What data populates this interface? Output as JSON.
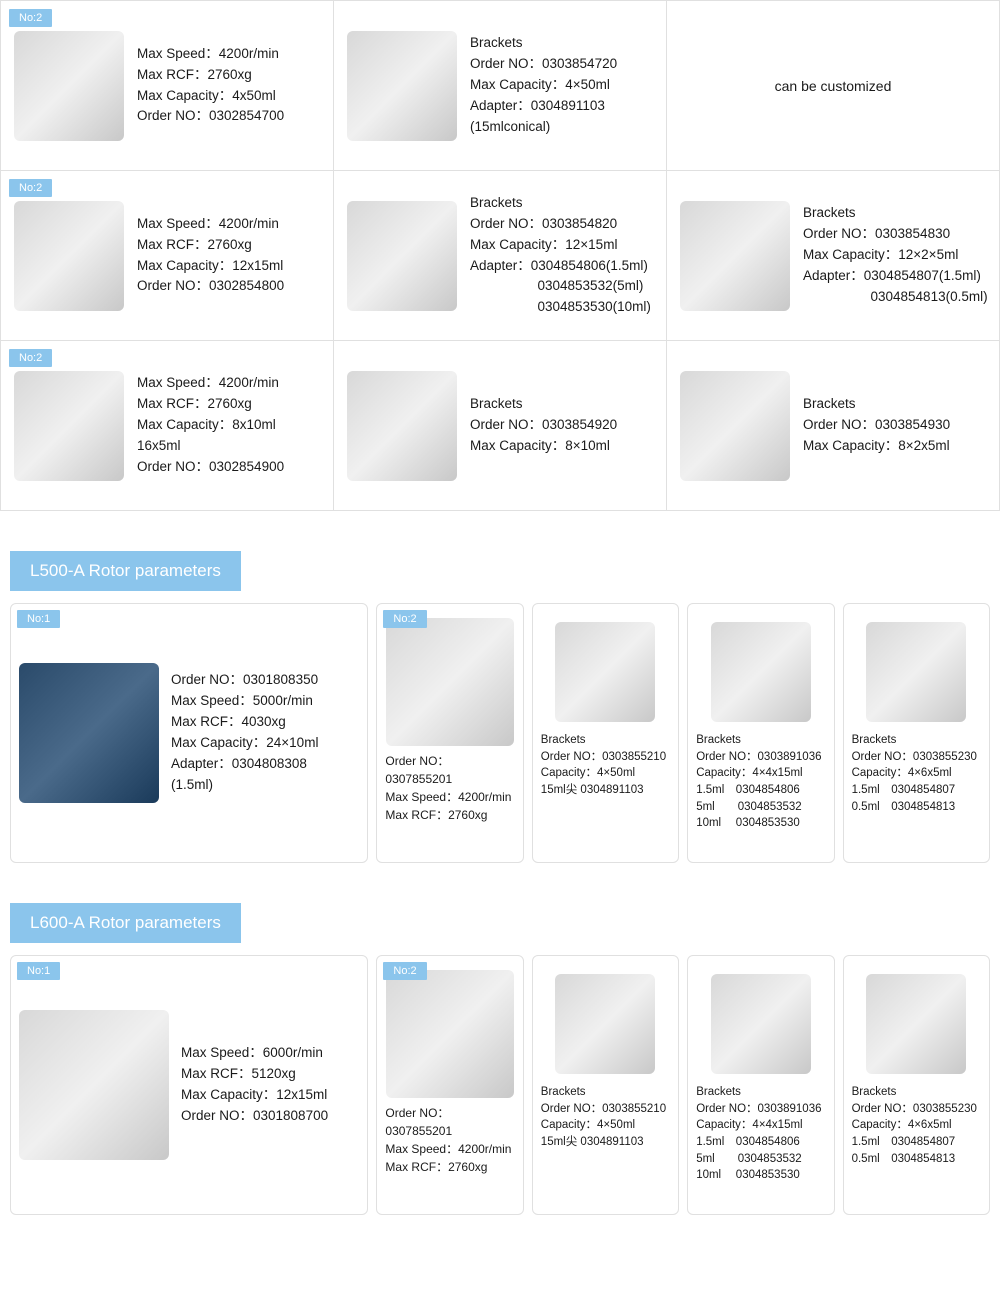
{
  "top_grid": {
    "rows": [
      {
        "cells": [
          {
            "badge": "No:2",
            "lines": [
              "Max Speed：4200r/min",
              "Max RCF：2760xg",
              "Max Capacity：4x50ml",
              "Order NO：0302854700"
            ]
          },
          {
            "lines": [
              "Brackets",
              "Order NO：0303854720",
              "Max Capacity：4×50ml",
              "Adapter：0304891103",
              "(15mlconical)"
            ]
          },
          {
            "center": "can be customized"
          }
        ]
      },
      {
        "cells": [
          {
            "badge": "No:2",
            "lines": [
              "Max Speed：4200r/min",
              "Max RCF：2760xg",
              "Max Capacity：12x15ml",
              "Order NO：0302854800"
            ]
          },
          {
            "lines": [
              "Brackets",
              "Order NO：0303854820",
              "Max Capacity：12×15ml",
              "Adapter：0304854806(1.5ml)",
              "　　　　　0304853532(5ml)",
              "　　　　　0304853530(10ml)"
            ]
          },
          {
            "lines": [
              "Brackets",
              "Order NO：0303854830",
              "Max Capacity：12×2×5ml",
              "Adapter：0304854807(1.5ml)",
              "　　　　　0304854813(0.5ml)"
            ]
          }
        ]
      },
      {
        "cells": [
          {
            "badge": "No:2",
            "lines": [
              "Max Speed：4200r/min",
              "Max RCF：2760xg",
              "Max Capacity：8x10ml",
              "16x5ml",
              "Order NO：0302854900"
            ]
          },
          {
            "lines": [
              "Brackets",
              "Order NO：0303854920",
              "Max Capacity：8×10ml"
            ]
          },
          {
            "lines": [
              "Brackets",
              "Order NO：0303854930",
              "Max Capacity：8×2x5ml"
            ]
          }
        ]
      }
    ]
  },
  "section_l500": {
    "title": "L500-A Rotor parameters",
    "card_lg": {
      "badge": "No:1",
      "img_style": "dark",
      "lines": [
        "Order NO：0301808350",
        "Max Speed：5000r/min",
        "Max RCF：4030xg",
        "Max Capacity：24×10ml",
        "Adapter：0304808308",
        "(1.5ml)"
      ]
    },
    "cards": [
      {
        "badge": "No:2",
        "lines": [
          "Order NO：0307855201",
          "Max Speed：4200r/min",
          "Max RCF：2760xg"
        ]
      },
      {
        "lines": [
          "Brackets",
          "Order NO：0303855210",
          "Capacity：4×50ml",
          "15ml尖 0304891103"
        ]
      },
      {
        "lines": [
          "Brackets",
          "Order NO：0303891036",
          "Capacity：4×4x15ml",
          "1.5ml　0304854806",
          "5ml　　0304853532",
          "10ml　 0304853530"
        ]
      },
      {
        "lines": [
          "Brackets",
          "Order NO：0303855230",
          "Capacity：4×6x5ml",
          "1.5ml　0304854807",
          "0.5ml　0304854813"
        ]
      }
    ]
  },
  "section_l600": {
    "title": "L600-A Rotor parameters",
    "card_lg": {
      "badge": "No:1",
      "img_style": "metal",
      "lines": [
        "Max Speed：6000r/min",
        "Max RCF：5120xg",
        "Max Capacity：12x15ml",
        "Order NO：0301808700"
      ]
    },
    "cards": [
      {
        "badge": "No:2",
        "lines": [
          "Order NO：0307855201",
          "Max Speed：4200r/min",
          "Max RCF：2760xg"
        ]
      },
      {
        "lines": [
          "Brackets",
          "Order NO：0303855210",
          "Capacity：4×50ml",
          "15ml尖 0304891103"
        ]
      },
      {
        "lines": [
          "Brackets",
          "Order NO：0303891036",
          "Capacity：4×4x15ml",
          "1.5ml　0304854806",
          "5ml　　0304853532",
          "10ml　 0304853530"
        ]
      },
      {
        "lines": [
          "Brackets",
          "Order NO：0303855230",
          "Capacity：4×6x5ml",
          "1.5ml　0304854807",
          "0.5ml　0304854813"
        ]
      }
    ]
  }
}
